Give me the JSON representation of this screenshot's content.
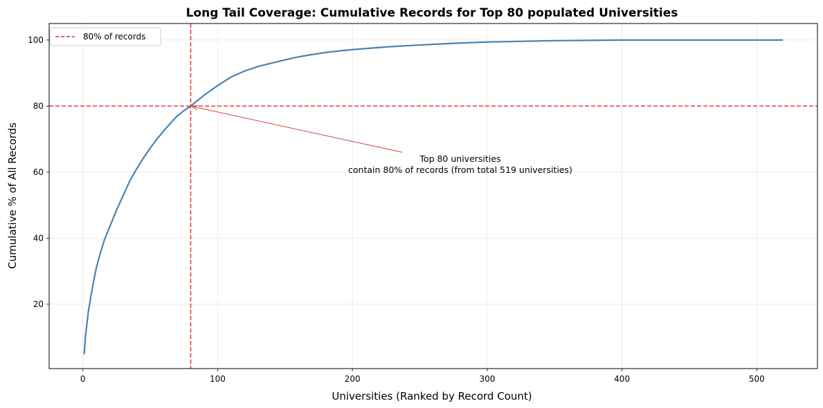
{
  "chart_data": {
    "type": "line",
    "title": "Long Tail Coverage: Cumulative Records for Top 80 populated Universities",
    "xlabel": "Universities (Ranked by Record Count)",
    "ylabel": "Cumulative % of All Records",
    "xlim": [
      -25,
      545
    ],
    "ylim": [
      0.5,
      105
    ],
    "xticks": [
      0,
      100,
      200,
      300,
      400,
      500
    ],
    "yticks": [
      20,
      40,
      60,
      80,
      100
    ],
    "grid": true,
    "legend_position": "top-left",
    "colors": {
      "curve": "#4682b4",
      "threshold": "#e03c3c"
    },
    "series": [
      {
        "x": [
          1,
          2,
          4,
          6,
          8,
          10,
          13,
          16,
          20,
          25,
          30,
          35,
          40,
          45,
          50,
          55,
          60,
          65,
          70,
          75,
          80,
          90,
          100,
          110,
          120,
          130,
          140,
          150,
          160,
          170,
          180,
          190,
          200,
          225,
          250,
          275,
          300,
          325,
          350,
          375,
          400,
          425,
          450,
          475,
          500,
          519
        ],
        "y": [
          5,
          10.5,
          17.5,
          22.5,
          27,
          31,
          35.5,
          39.5,
          43.5,
          48.5,
          53,
          57.5,
          61,
          64.3,
          67.3,
          70,
          72.5,
          74.8,
          77,
          78.6,
          80,
          83.3,
          86.2,
          88.8,
          90.6,
          92,
          93,
          94,
          94.9,
          95.6,
          96.2,
          96.7,
          97.1,
          97.9,
          98.5,
          99,
          99.4,
          99.6,
          99.8,
          99.9,
          100,
          100,
          100,
          100,
          100,
          100
        ]
      }
    ],
    "reference_lines": [
      {
        "orientation": "vertical",
        "value": 80,
        "legend": "80% of records"
      },
      {
        "orientation": "horizontal",
        "value": 80
      }
    ],
    "annotation": {
      "lines": [
        "Top 80 universities",
        "contain 80% of records (from total 519 universities)"
      ],
      "point": [
        80,
        80
      ],
      "text_anchor": [
        237,
        66
      ]
    }
  }
}
